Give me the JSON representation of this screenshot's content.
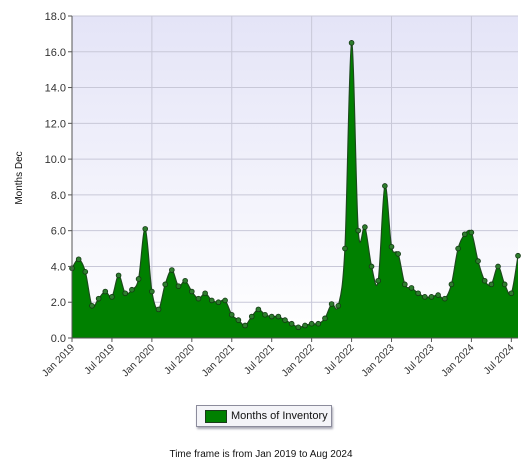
{
  "chart_data": {
    "type": "area",
    "title": "",
    "ylabel": "Months Dec",
    "xlabel": "",
    "ylim": [
      0,
      18
    ],
    "y_ticks": [
      "0.0",
      "2.0",
      "4.0",
      "6.0",
      "8.0",
      "10.0",
      "12.0",
      "14.0",
      "16.0",
      "18.0"
    ],
    "x_ticks": [
      {
        "label": "Jan 2019",
        "index": 0
      },
      {
        "label": "Jul 2019",
        "index": 6
      },
      {
        "label": "Jan 2020",
        "index": 12
      },
      {
        "label": "Jul 2020",
        "index": 18
      },
      {
        "label": "Jan 2021",
        "index": 24
      },
      {
        "label": "Jul 2021",
        "index": 30
      },
      {
        "label": "Jan 2022",
        "index": 36
      },
      {
        "label": "Jul 2022",
        "index": 42
      },
      {
        "label": "Jan 2023",
        "index": 48
      },
      {
        "label": "Jul 2023",
        "index": 54
      },
      {
        "label": "Jan 2024",
        "index": 60
      },
      {
        "label": "Jul 2024",
        "index": 66
      }
    ],
    "x": [
      "Jan 2019",
      "Feb 2019",
      "Mar 2019",
      "Apr 2019",
      "May 2019",
      "Jun 2019",
      "Jul 2019",
      "Aug 2019",
      "Sep 2019",
      "Oct 2019",
      "Nov 2019",
      "Dec 2019",
      "Jan 2020",
      "Feb 2020",
      "Mar 2020",
      "Apr 2020",
      "May 2020",
      "Jun 2020",
      "Jul 2020",
      "Aug 2020",
      "Sep 2020",
      "Oct 2020",
      "Nov 2020",
      "Dec 2020",
      "Jan 2021",
      "Feb 2021",
      "Mar 2021",
      "Apr 2021",
      "May 2021",
      "Jun 2021",
      "Jul 2021",
      "Aug 2021",
      "Sep 2021",
      "Oct 2021",
      "Nov 2021",
      "Dec 2021",
      "Jan 2022",
      "Feb 2022",
      "Mar 2022",
      "Apr 2022",
      "May 2022",
      "Jun 2022",
      "Jul 2022",
      "Aug 2022",
      "Sep 2022",
      "Oct 2022",
      "Nov 2022",
      "Dec 2022",
      "Jan 2023",
      "Feb 2023",
      "Mar 2023",
      "Apr 2023",
      "May 2023",
      "Jun 2023",
      "Jul 2023",
      "Aug 2023",
      "Sep 2023",
      "Oct 2023",
      "Nov 2023",
      "Dec 2023",
      "Jan 2024",
      "Feb 2024",
      "Mar 2024",
      "Apr 2024",
      "May 2024",
      "Jun 2024",
      "Jul 2024",
      "Aug 2024"
    ],
    "series": [
      {
        "name": "Months of Inventory",
        "color": "#008000",
        "values": [
          3.9,
          4.4,
          3.7,
          1.8,
          2.2,
          2.6,
          2.3,
          3.5,
          2.5,
          2.7,
          3.3,
          6.1,
          2.6,
          1.6,
          3.0,
          3.8,
          2.9,
          3.2,
          2.6,
          2.2,
          2.5,
          2.1,
          2.0,
          2.1,
          1.3,
          1.0,
          0.7,
          1.2,
          1.6,
          1.3,
          1.2,
          1.2,
          1.0,
          0.8,
          0.6,
          0.7,
          0.8,
          0.8,
          1.1,
          1.9,
          1.8,
          5.0,
          16.5,
          6.0,
          6.2,
          4.0,
          3.2,
          8.5,
          5.1,
          4.7,
          3.0,
          2.8,
          2.5,
          2.3,
          2.3,
          2.4,
          2.2,
          3.0,
          5.0,
          5.8,
          5.9,
          4.3,
          3.2,
          3.0,
          4.0,
          3.0,
          2.5,
          4.6
        ]
      }
    ],
    "grid": true,
    "legend": "bottom-center"
  },
  "legend": {
    "label": "Months of Inventory"
  },
  "caption": "Time frame is from Jan 2019 to Aug 2024"
}
